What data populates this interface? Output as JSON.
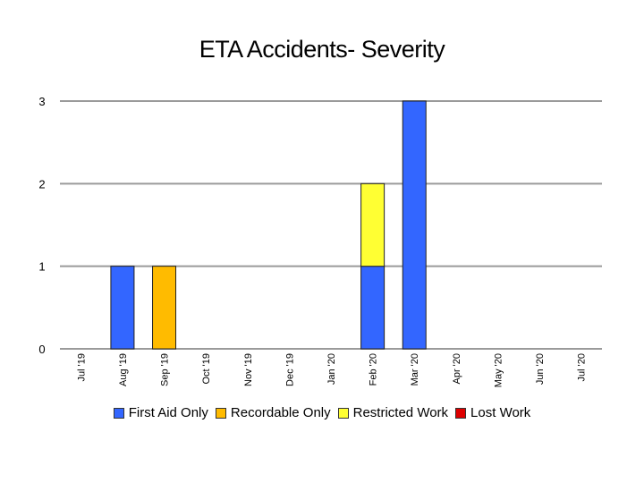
{
  "chart_data": {
    "type": "bar",
    "stacked": true,
    "title": "ETA Accidents- Severity",
    "xlabel": "",
    "ylabel": "",
    "ylim": [
      0,
      3
    ],
    "yticks": [
      0,
      1,
      2,
      3
    ],
    "grid": true,
    "legend_position": "bottom",
    "categories": [
      "Jul '19",
      "Aug '19",
      "Sep '19",
      "Oct '19",
      "Nov '19",
      "Dec '19",
      "Jan '20",
      "Feb '20",
      "Mar '20",
      "Apr '20",
      "May '20",
      "Jun '20",
      "Jul '20"
    ],
    "series": [
      {
        "name": "First Aid Only",
        "color": "#3366ff",
        "values": [
          0,
          1,
          0,
          0,
          0,
          0,
          0,
          1,
          3,
          0,
          0,
          0,
          0
        ]
      },
      {
        "name": "Recordable Only",
        "color": "#ffbb00",
        "values": [
          0,
          0,
          1,
          0,
          0,
          0,
          0,
          0,
          0,
          0,
          0,
          0,
          0
        ]
      },
      {
        "name": "Restricted Work",
        "color": "#ffff33",
        "values": [
          0,
          0,
          0,
          0,
          0,
          0,
          0,
          1,
          0,
          0,
          0,
          0,
          0
        ]
      },
      {
        "name": "Lost Work",
        "color": "#dd0000",
        "values": [
          0,
          0,
          0,
          0,
          0,
          0,
          0,
          0,
          0,
          0,
          0,
          0,
          0
        ]
      }
    ]
  }
}
